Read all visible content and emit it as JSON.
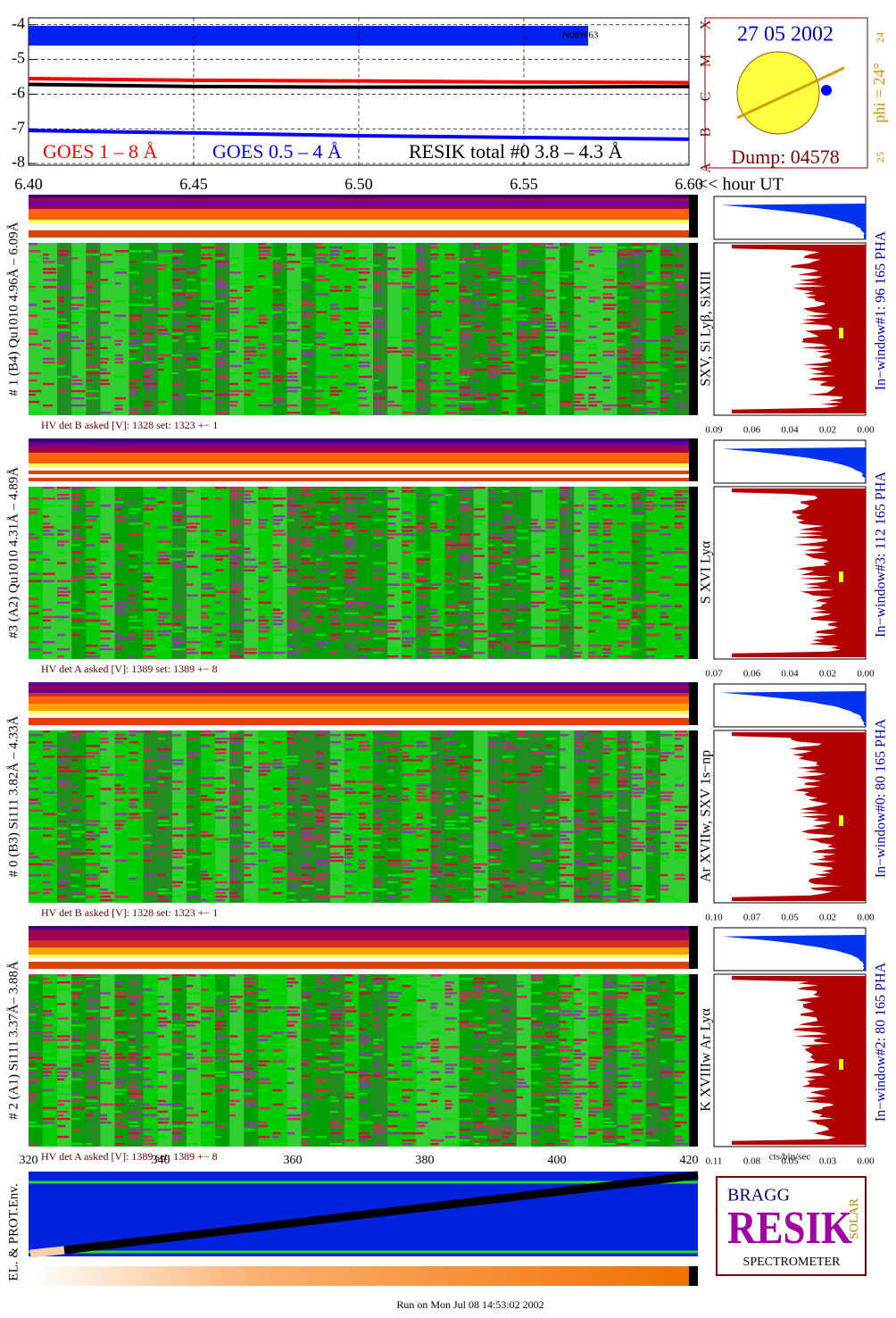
{
  "chart_data": [
    {
      "type": "line",
      "ylim": [
        -8.05,
        -3.8
      ],
      "yticks": [
        -4,
        -5,
        -6,
        -7,
        -8
      ],
      "xlim": [
        6.4,
        6.6
      ],
      "xticks": [
        {
          "value": 6.4,
          "label": "6.40"
        },
        {
          "value": 6.45,
          "label": "6.45"
        },
        {
          "value": 6.5,
          "label": "6.50"
        },
        {
          "value": 6.55,
          "label": "6.55"
        },
        {
          "value": 6.6,
          "label": "6.60"
        }
      ],
      "x_label": "<< hour UT",
      "annotation": "N08W63",
      "class_labels": [
        "X",
        "M",
        "C",
        "B",
        "A"
      ],
      "grid": true,
      "x": [
        6.4,
        6.45,
        6.5,
        6.55,
        6.6
      ],
      "series": [
        {
          "name": "GOES 1 – 8 Å",
          "color": "#ff0000",
          "values": [
            -5.55,
            -5.6,
            -5.62,
            -5.65,
            -5.67
          ]
        },
        {
          "name": "GOES 0.5 – 4 Å",
          "color": "#0000ff",
          "values": [
            -7.05,
            -7.12,
            -7.2,
            -7.25,
            -7.3
          ]
        },
        {
          "name": "RESIK total #0  3.8 – 4.3 Å",
          "color": "#000000",
          "values": [
            -5.72,
            -5.78,
            -5.8,
            -5.8,
            -5.78
          ]
        }
      ]
    }
  ],
  "sun": {
    "date": "27 05 2002",
    "phi": "phi = 24°",
    "top": "24",
    "bottom": "25",
    "dump": "Dump: 04578"
  },
  "panels": [
    {
      "left": "# 1 (B4) Qu1010 4.96Å – 6.09Å",
      "lines": "SXV, Si Lyβ, SiXIII",
      "hv": "HV det B asked [V]:  1328 set:  1323 +−   1",
      "pha": "In−window#1:   96 165  PHA",
      "ticks": [
        "0.09",
        "0.06",
        "0.04",
        "0.02",
        "0.00"
      ]
    },
    {
      "left": "#3 (A2) Qu1010  4.31Å – 4.89Å",
      "lines": "S XVI Lyα",
      "hv": "HV det A asked [V]:  1389 set:  1389 +−   8",
      "pha": "In−window#3:   112 165  PHA",
      "ticks": [
        "0.07",
        "0.06",
        "0.04",
        "0.02",
        "0.00"
      ]
    },
    {
      "left": "# 0 (B3) Si111  3.82Å – 4.33Å",
      "lines": "Ar XVIIw,  SXV 1s−np",
      "hv": "HV det B asked [V]:  1328 set:  1323 +−   1",
      "pha": "In−window#0:   80 165  PHA",
      "ticks": [
        "0.10",
        "0.07",
        "0.05",
        "0.02",
        "0.00"
      ]
    },
    {
      "left": "# 2 (A1) Si111  3.37Å– 3.88Å",
      "lines": "K XVIIIw  Ar Lyα",
      "hv": "HV det A asked [V]:  1389 set:  1389 +−   8",
      "pha": "In−window#2:   80 165  PHA",
      "ticks": [
        "0.11",
        "0.08",
        "0.05",
        "0.03",
        "0.00"
      ]
    }
  ],
  "hist_label": "cts/bin/sec",
  "bottom": {
    "ticks": [
      "320",
      "340",
      "360",
      "380",
      "400",
      "420"
    ],
    "y_label": "EL. & PROT.Env."
  },
  "logo": {
    "small_top": "BRAGG",
    "big": "RESIK",
    "small_side": "SOLAR",
    "word": "SPECTROMETER"
  },
  "footer": "Run on Mon Jul 08 14:53:02 2002"
}
